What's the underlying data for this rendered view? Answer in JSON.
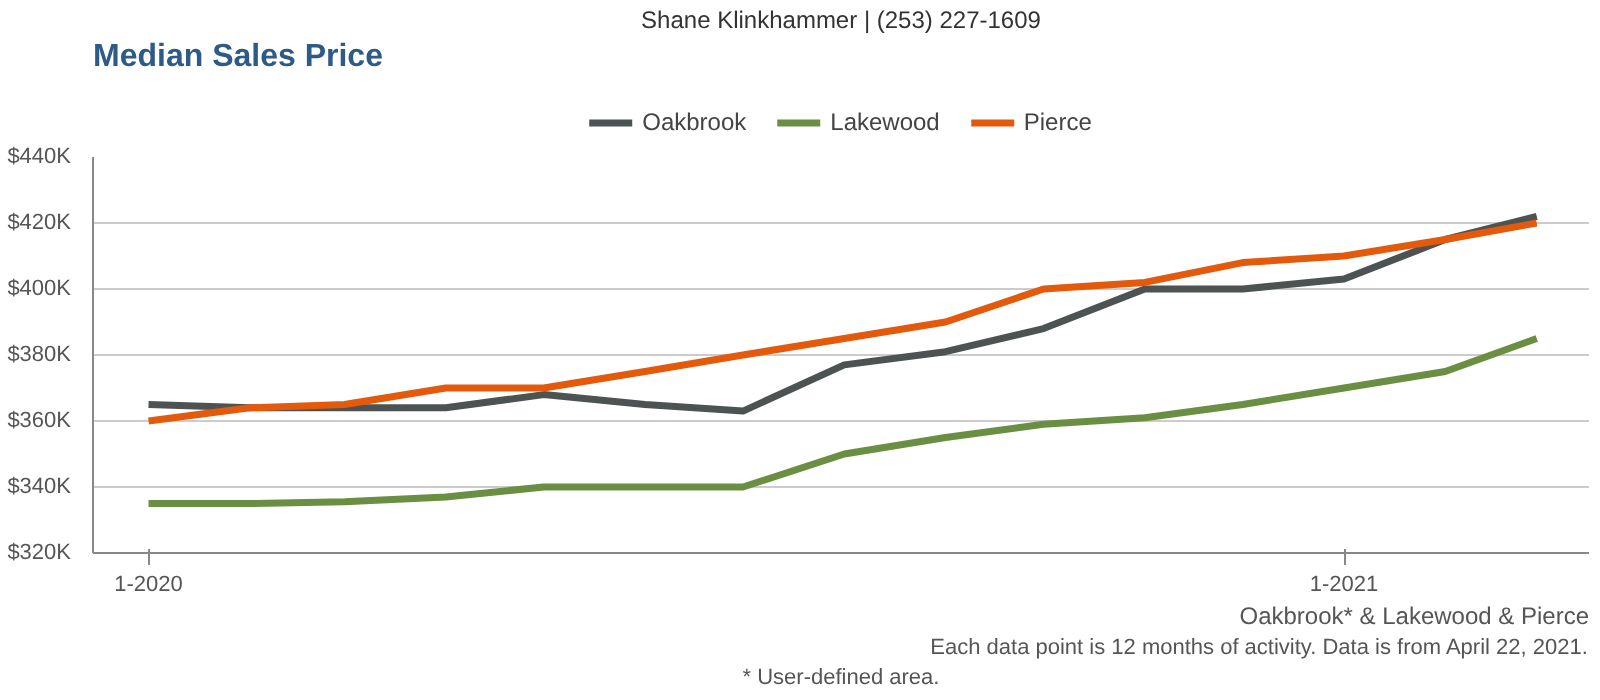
{
  "chart_data": {
    "type": "line",
    "title": "Median Sales Price",
    "annotations": [
      "Shane Klinkhammer | (253) 227-1609",
      "Oakbrook* & Lakewood & Pierce",
      "Each data point is 12 months of activity. Data is from April 22, 2021.",
      "* User-defined area."
    ],
    "x": [
      "2020-01",
      "2020-02",
      "2020-03",
      "2020-04",
      "2020-05",
      "2020-06",
      "2020-07",
      "2020-08",
      "2020-09",
      "2020-10",
      "2020-11",
      "2020-12",
      "2021-01",
      "2021-02",
      "2021-03"
    ],
    "series": [
      {
        "name": "Oakbrook",
        "color": "#4d5252",
        "values": [
          365000,
          364000,
          364000,
          364000,
          368000,
          365000,
          363000,
          377000,
          381000,
          388000,
          400000,
          400000,
          403000,
          415000,
          422000
        ]
      },
      {
        "name": "Lakewood",
        "color": "#6a8f43",
        "values": [
          335000,
          335000,
          335500,
          337000,
          340000,
          340000,
          340000,
          350000,
          355000,
          359000,
          361000,
          365000,
          370000,
          375000,
          385000
        ]
      },
      {
        "name": "Pierce",
        "color": "#e35a0c",
        "values": [
          360000,
          364000,
          365000,
          370000,
          370000,
          375000,
          380000,
          385000,
          390000,
          400000,
          402000,
          408000,
          410000,
          415000,
          420000
        ]
      }
    ],
    "xlim": [
      "2019-12-15",
      "2021-03-17"
    ],
    "xticks": [
      {
        "value": "2020-01",
        "label": "1-2020"
      },
      {
        "value": "2021-01",
        "label": "1-2021"
      }
    ],
    "ylim": [
      320000,
      440000
    ],
    "yticks": [
      {
        "value": 320000,
        "label": "$320K"
      },
      {
        "value": 340000,
        "label": "$340K"
      },
      {
        "value": 360000,
        "label": "$360K"
      },
      {
        "value": 380000,
        "label": "$380K"
      },
      {
        "value": 400000,
        "label": "$400K"
      },
      {
        "value": 420000,
        "label": "$420K"
      },
      {
        "value": 440000,
        "label": "$440K"
      }
    ],
    "grid": "y",
    "legend": "top",
    "marker": "none",
    "line_style": "solid"
  }
}
